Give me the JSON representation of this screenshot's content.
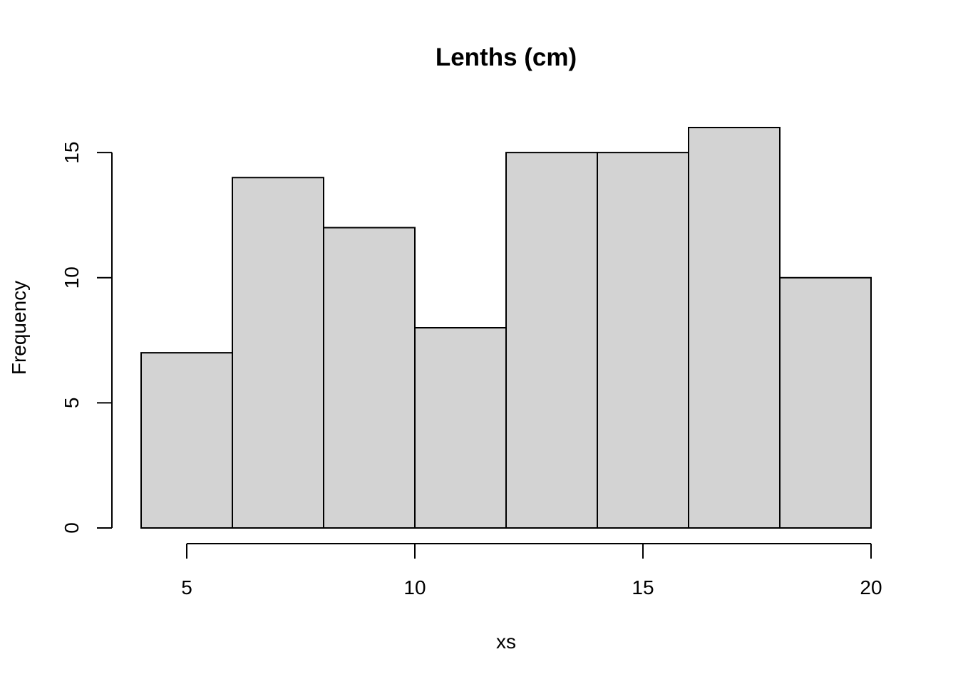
{
  "chart_data": {
    "type": "bar",
    "title": "Lenths (cm)",
    "xlabel": "xs",
    "ylabel": "Frequency",
    "bins": [
      {
        "start": 4,
        "end": 6,
        "count": 7
      },
      {
        "start": 6,
        "end": 8,
        "count": 14
      },
      {
        "start": 8,
        "end": 10,
        "count": 12
      },
      {
        "start": 10,
        "end": 12,
        "count": 8
      },
      {
        "start": 12,
        "end": 14,
        "count": 15
      },
      {
        "start": 14,
        "end": 16,
        "count": 15
      },
      {
        "start": 16,
        "end": 18,
        "count": 16
      },
      {
        "start": 18,
        "end": 20,
        "count": 10
      }
    ],
    "xlim": [
      4,
      20
    ],
    "ylim": [
      0,
      16
    ],
    "x_ticks": [
      5,
      10,
      15,
      20
    ],
    "x_tick_labels": [
      "5",
      "10",
      "15",
      "20"
    ],
    "y_ticks": [
      0,
      5,
      10,
      15
    ],
    "y_tick_labels": [
      "0",
      "5",
      "10",
      "15"
    ],
    "bar_color": "#d3d3d3",
    "grid": false
  }
}
